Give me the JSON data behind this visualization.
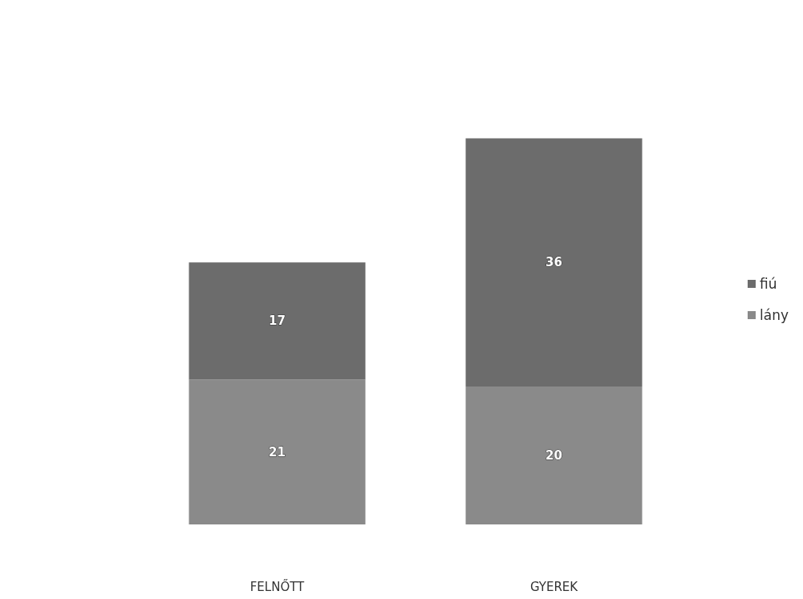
{
  "chart_data": {
    "type": "bar",
    "stacked": true,
    "categories": [
      "FELNŐTT",
      "GYEREK"
    ],
    "series": [
      {
        "name": "lány",
        "color": "#8a8a8a",
        "values": [
          21,
          20
        ]
      },
      {
        "name": "fiú",
        "color": "#6c6c6c",
        "values": [
          17,
          36
        ]
      }
    ],
    "data_labels": true,
    "legend": "right"
  }
}
